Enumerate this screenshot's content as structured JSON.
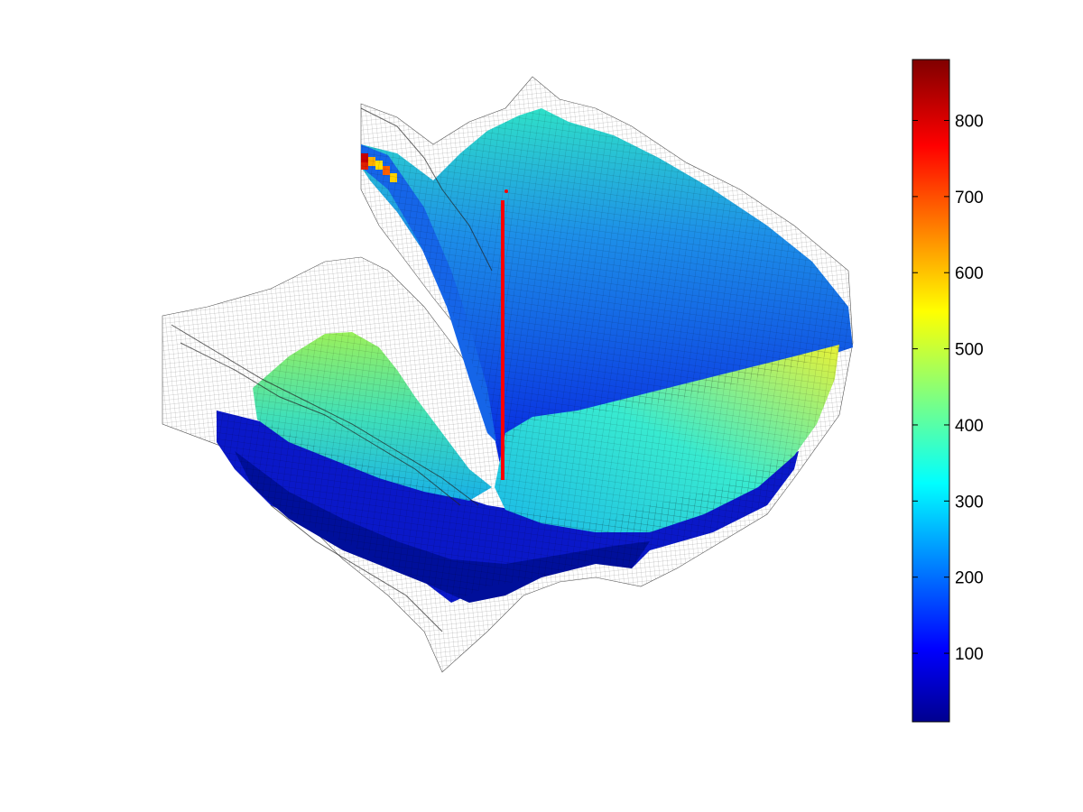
{
  "chart_data": {
    "type": "heatmap",
    "colormap": "jet",
    "colorbar": {
      "range": [
        10,
        880
      ],
      "ticks": [
        100,
        200,
        300,
        400,
        500,
        600,
        700,
        800
      ],
      "tick_labels": [
        "100",
        "200",
        "300",
        "400",
        "500",
        "600",
        "700",
        "800"
      ],
      "placement": "right"
    },
    "surface": {
      "description_values": {
        "grid_style": "wireframe-mesh-over-colored-surface",
        "well_color": "#ff0000"
      }
    }
  }
}
